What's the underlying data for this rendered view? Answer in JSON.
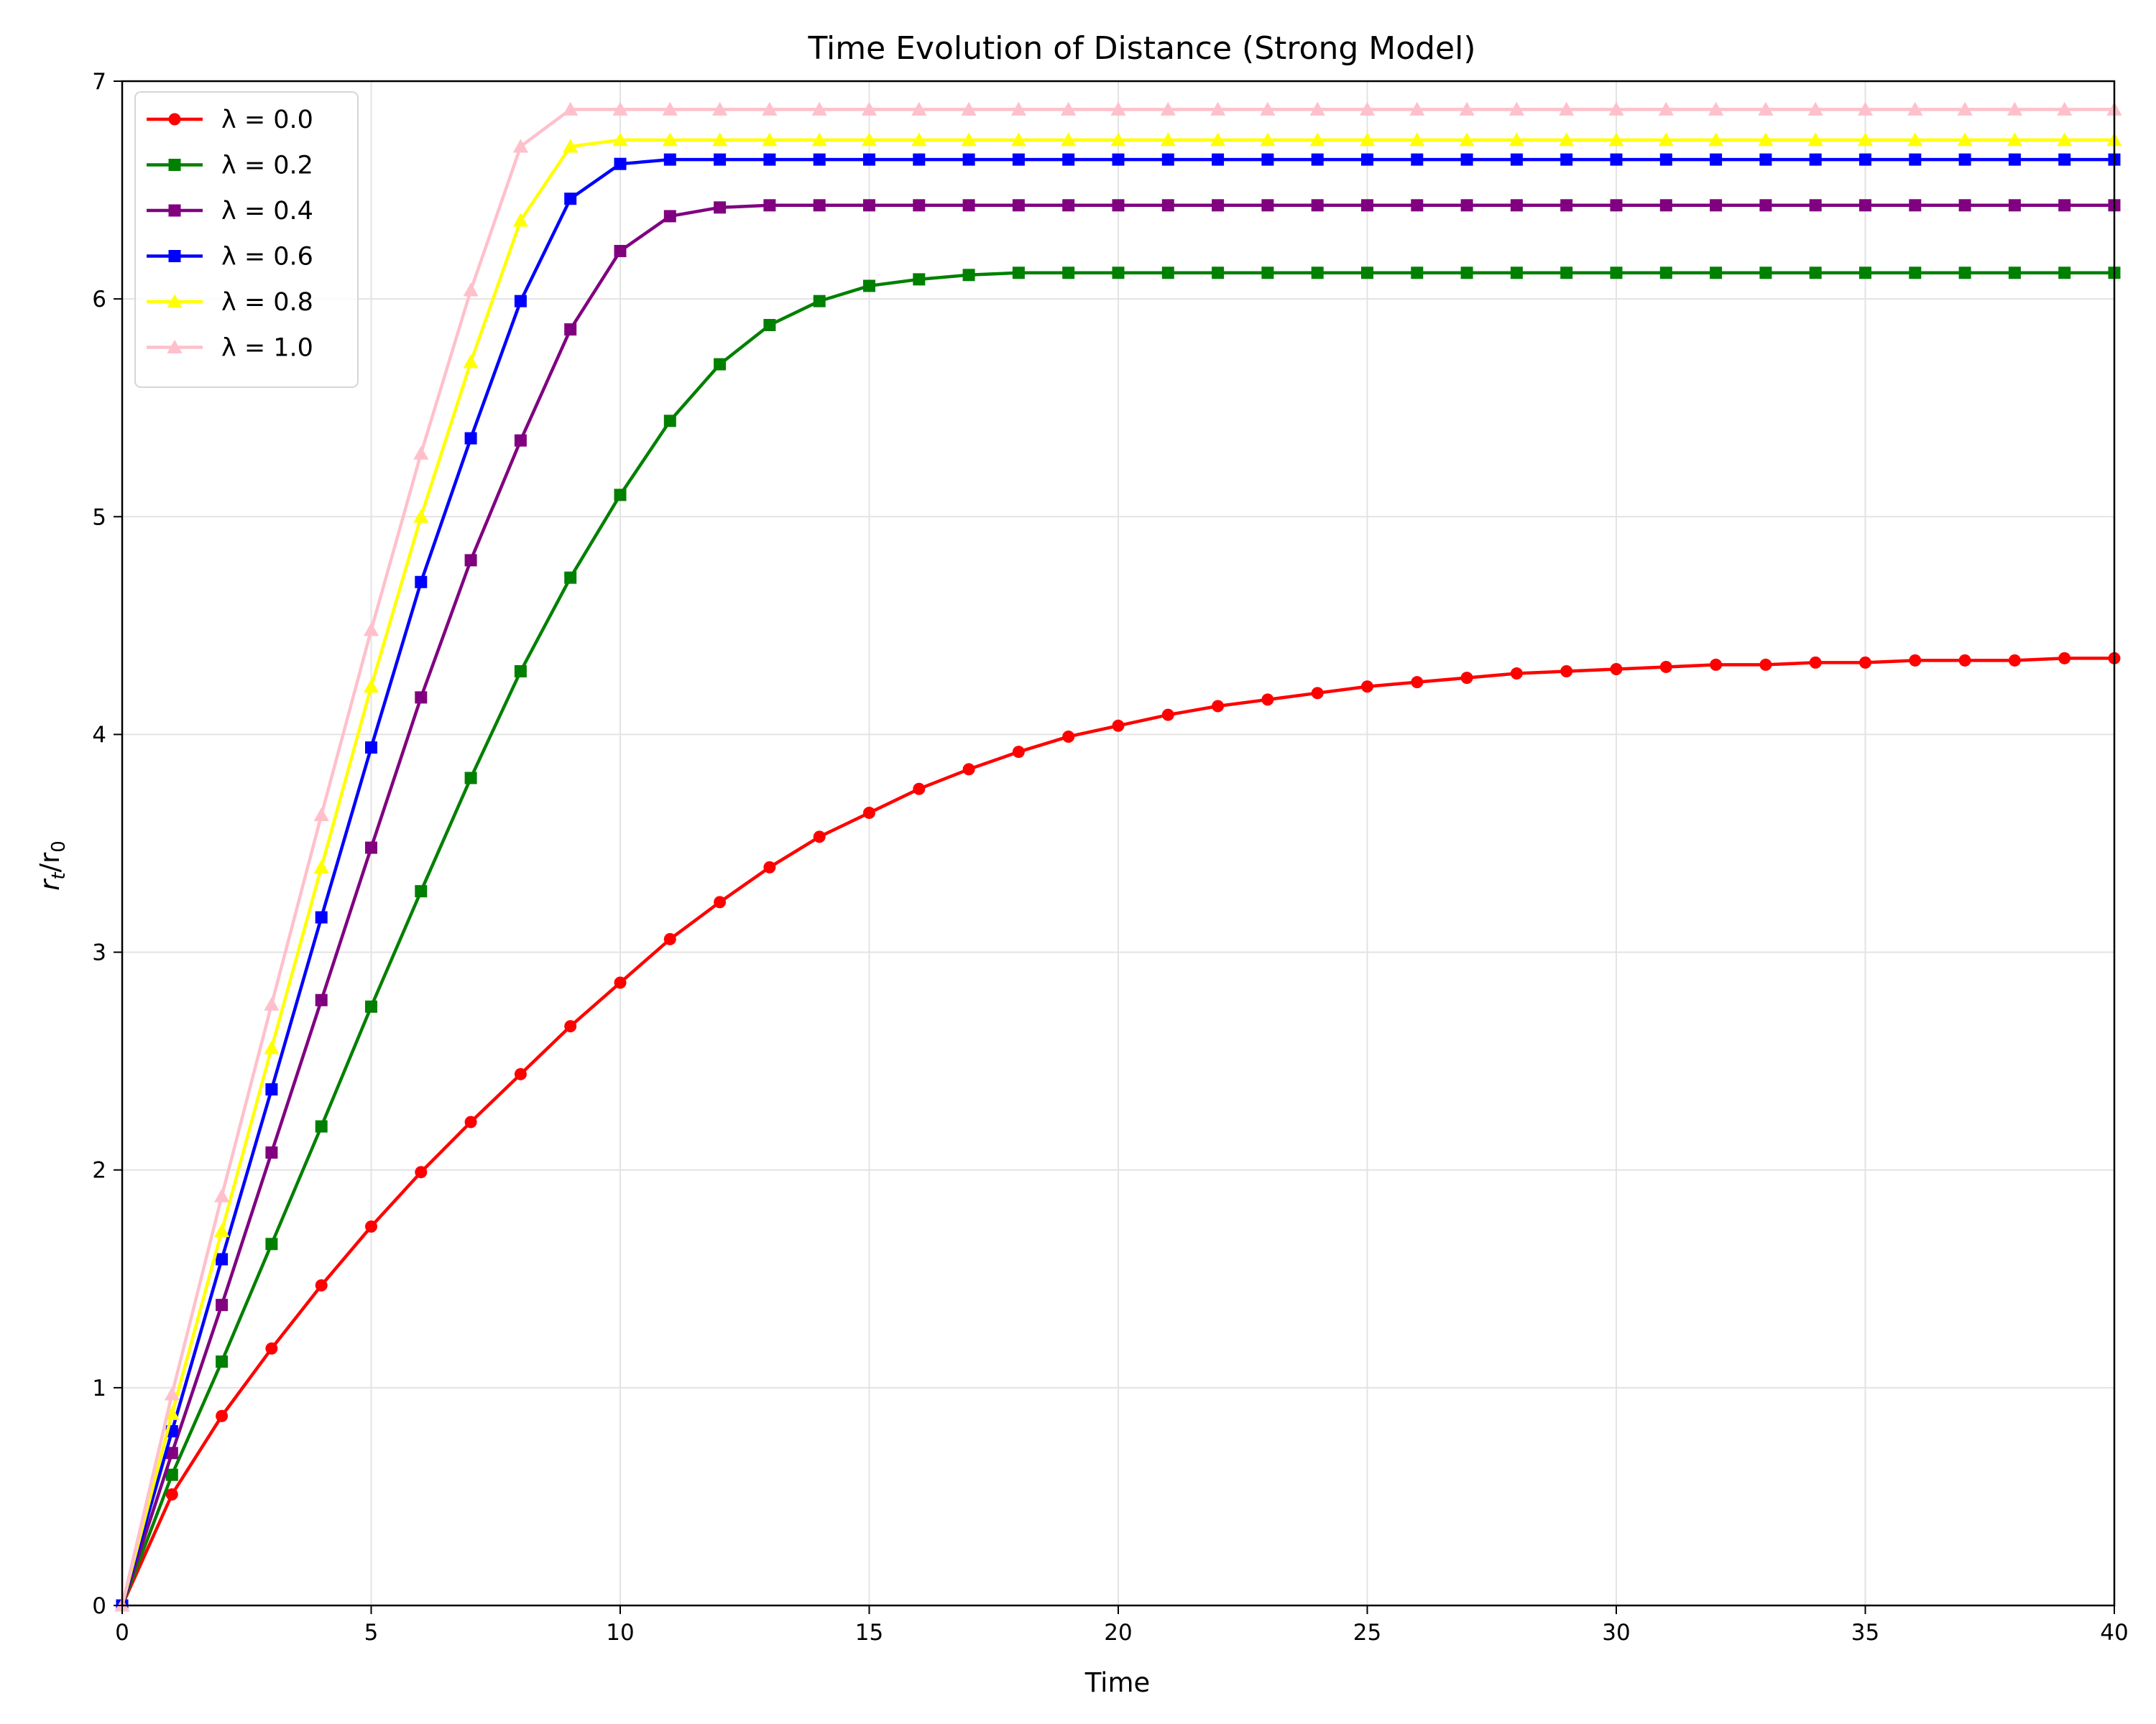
{
  "chart_data": {
    "type": "line",
    "title": "Time Evolution of Distance (Strong Model)",
    "xlabel": "Time",
    "ylabel": {
      "base": "r",
      "sub1": "t",
      "sep": "/r",
      "sub2": "0"
    },
    "xlim": [
      0,
      40
    ],
    "ylim": [
      0,
      7
    ],
    "xticks": [
      0,
      5,
      10,
      15,
      20,
      25,
      30,
      35,
      40
    ],
    "yticks": [
      0,
      1,
      2,
      3,
      4,
      5,
      6,
      7
    ],
    "grid": true,
    "legend_position": "top-left",
    "x": [
      0,
      1,
      2,
      3,
      4,
      5,
      6,
      7,
      8,
      9,
      10,
      11,
      12,
      13,
      14,
      15,
      16,
      17,
      18,
      19,
      20,
      21,
      22,
      23,
      24,
      25,
      26,
      27,
      28,
      29,
      30,
      31,
      32,
      33,
      34,
      35,
      36,
      37,
      38,
      39,
      40
    ],
    "series": [
      {
        "name": "λ = 0.0",
        "color": "#ff0000",
        "marker": "circle",
        "values": [
          0,
          0.51,
          0.87,
          1.18,
          1.47,
          1.74,
          1.99,
          2.22,
          2.44,
          2.66,
          2.86,
          3.06,
          3.23,
          3.39,
          3.53,
          3.64,
          3.75,
          3.84,
          3.92,
          3.99,
          4.04,
          4.09,
          4.13,
          4.16,
          4.19,
          4.22,
          4.24,
          4.26,
          4.28,
          4.29,
          4.3,
          4.31,
          4.32,
          4.32,
          4.33,
          4.33,
          4.34,
          4.34,
          4.34,
          4.35,
          4.35
        ]
      },
      {
        "name": "λ = 0.2",
        "color": "#008000",
        "marker": "square",
        "values": [
          0,
          0.6,
          1.12,
          1.66,
          2.2,
          2.75,
          3.28,
          3.8,
          4.29,
          4.72,
          5.1,
          5.44,
          5.7,
          5.88,
          5.99,
          6.06,
          6.09,
          6.11,
          6.12,
          6.12,
          6.12,
          6.12,
          6.12,
          6.12,
          6.12,
          6.12,
          6.12,
          6.12,
          6.12,
          6.12,
          6.12,
          6.12,
          6.12,
          6.12,
          6.12,
          6.12,
          6.12,
          6.12,
          6.12,
          6.12,
          6.12
        ]
      },
      {
        "name": "λ = 0.4",
        "color": "#800080",
        "marker": "square",
        "values": [
          0,
          0.7,
          1.38,
          2.08,
          2.78,
          3.48,
          4.17,
          4.8,
          5.35,
          5.86,
          6.22,
          6.38,
          6.42,
          6.43,
          6.43,
          6.43,
          6.43,
          6.43,
          6.43,
          6.43,
          6.43,
          6.43,
          6.43,
          6.43,
          6.43,
          6.43,
          6.43,
          6.43,
          6.43,
          6.43,
          6.43,
          6.43,
          6.43,
          6.43,
          6.43,
          6.43,
          6.43,
          6.43,
          6.43,
          6.43,
          6.43
        ]
      },
      {
        "name": "λ = 0.6",
        "color": "#0000ff",
        "marker": "square",
        "values": [
          0,
          0.8,
          1.59,
          2.37,
          3.16,
          3.94,
          4.7,
          5.36,
          5.99,
          6.46,
          6.62,
          6.64,
          6.64,
          6.64,
          6.64,
          6.64,
          6.64,
          6.64,
          6.64,
          6.64,
          6.64,
          6.64,
          6.64,
          6.64,
          6.64,
          6.64,
          6.64,
          6.64,
          6.64,
          6.64,
          6.64,
          6.64,
          6.64,
          6.64,
          6.64,
          6.64,
          6.64,
          6.64,
          6.64,
          6.64,
          6.64
        ]
      },
      {
        "name": "λ = 0.8",
        "color": "#ffff00",
        "marker": "triangle",
        "values": [
          0,
          0.88,
          1.72,
          2.56,
          3.39,
          4.22,
          5.0,
          5.71,
          6.36,
          6.7,
          6.73,
          6.73,
          6.73,
          6.73,
          6.73,
          6.73,
          6.73,
          6.73,
          6.73,
          6.73,
          6.73,
          6.73,
          6.73,
          6.73,
          6.73,
          6.73,
          6.73,
          6.73,
          6.73,
          6.73,
          6.73,
          6.73,
          6.73,
          6.73,
          6.73,
          6.73,
          6.73,
          6.73,
          6.73,
          6.73,
          6.73
        ]
      },
      {
        "name": "λ = 1.0",
        "color": "#ffc0cb",
        "marker": "triangle",
        "values": [
          0,
          0.97,
          1.88,
          2.76,
          3.63,
          4.48,
          5.29,
          6.04,
          6.7,
          6.87,
          6.87,
          6.87,
          6.87,
          6.87,
          6.87,
          6.87,
          6.87,
          6.87,
          6.87,
          6.87,
          6.87,
          6.87,
          6.87,
          6.87,
          6.87,
          6.87,
          6.87,
          6.87,
          6.87,
          6.87,
          6.87,
          6.87,
          6.87,
          6.87,
          6.87,
          6.87,
          6.87,
          6.87,
          6.87,
          6.87,
          6.87
        ]
      }
    ]
  }
}
